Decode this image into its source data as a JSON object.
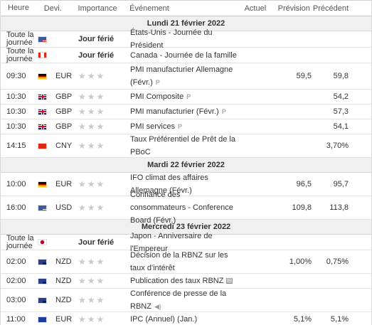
{
  "headers": {
    "time": "Heure",
    "currency": "Devi.",
    "importance": "Importance",
    "event": "Événement",
    "actual": "Actuel",
    "forecast": "Prévision",
    "previous": "Précédent"
  },
  "sections": [
    {
      "date": "Lundi 21 février 2022",
      "rows": [
        {
          "time": "Toute la journée",
          "flag": "us",
          "currency": "",
          "holiday": "Jour férié",
          "event": "États-Unis - Journée du Président",
          "actual": "",
          "forecast": "",
          "previous": ""
        },
        {
          "time": "Toute la journée",
          "flag": "ca",
          "currency": "",
          "holiday": "Jour férié",
          "event": "Canada - Journée de la famille",
          "actual": "",
          "forecast": "",
          "previous": ""
        },
        {
          "time": "09:30",
          "flag": "de",
          "currency": "EUR",
          "event": "PMI manufacturier Allemagne (Févr.)",
          "icon": "preliminary-icon",
          "actual": "",
          "forecast": "59,5",
          "previous": "59,8"
        },
        {
          "time": "10:30",
          "flag": "gb",
          "currency": "GBP",
          "event": "PMI Composite",
          "icon": "preliminary-icon",
          "actual": "",
          "forecast": "",
          "previous": "54,2"
        },
        {
          "time": "10:30",
          "flag": "gb",
          "currency": "GBP",
          "event": "PMI manufacturier (Févr.)",
          "icon": "preliminary-icon",
          "actual": "",
          "forecast": "",
          "previous": "57,3"
        },
        {
          "time": "10:30",
          "flag": "gb",
          "currency": "GBP",
          "event": "PMI services",
          "icon": "preliminary-icon",
          "actual": "",
          "forecast": "",
          "previous": "54,1"
        },
        {
          "time": "14:15",
          "flag": "cn",
          "currency": "CNY",
          "event": "Taux Préférentiel de Prêt de la PBoC",
          "actual": "",
          "forecast": "",
          "previous": "3,70%"
        }
      ]
    },
    {
      "date": "Mardi 22 février 2022",
      "rows": [
        {
          "time": "10:00",
          "flag": "de",
          "currency": "EUR",
          "event": "IFO climat des affaires Allemagne (Févr.)",
          "actual": "",
          "forecast": "96,5",
          "previous": "95,7"
        },
        {
          "time": "16:00",
          "flag": "us",
          "currency": "USD",
          "event": "Confiance des consommateurs - Conference Board (Févr.)",
          "actual": "",
          "forecast": "109,8",
          "previous": "113,8"
        }
      ]
    },
    {
      "date": "Mercredi 23 février 2022",
      "rows": [
        {
          "time": "Toute la journée",
          "flag": "jp",
          "currency": "",
          "holiday": "Jour férié",
          "event": "Japon - Anniversaire de l'Empereur",
          "actual": "",
          "forecast": "",
          "previous": ""
        },
        {
          "time": "02:00",
          "flag": "nz",
          "currency": "NZD",
          "event": "Décision de la RBNZ sur les taux d'intérêt",
          "actual": "",
          "forecast": "1,00%",
          "previous": "0,75%"
        },
        {
          "time": "02:00",
          "flag": "nz",
          "currency": "NZD",
          "event": "Publication des taux RBNZ",
          "icon": "report-icon",
          "actual": "",
          "forecast": "",
          "previous": ""
        },
        {
          "time": "03:00",
          "flag": "nz",
          "currency": "NZD",
          "event": "Conférence de presse de la RBNZ",
          "icon": "speaker-icon",
          "actual": "",
          "forecast": "",
          "previous": ""
        },
        {
          "time": "11:00",
          "flag": "eu",
          "currency": "EUR",
          "event": "IPC (Annuel) (Jan.)",
          "actual": "",
          "forecast": "5,1%",
          "previous": "5,1%"
        }
      ]
    }
  ],
  "colors": {
    "star_inactive": "#c9c9c9",
    "date_bg": "#f0f0f0"
  }
}
